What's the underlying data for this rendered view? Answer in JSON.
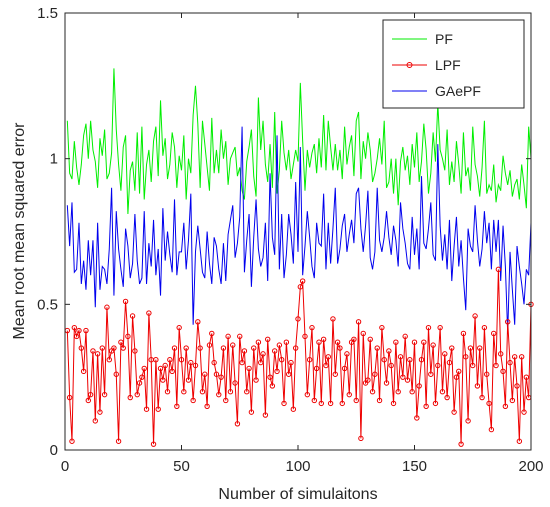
{
  "chart_data": {
    "type": "line",
    "xlabel": "Number of simulaitons",
    "ylabel": "Mean root mean squared error",
    "xlim": [
      0,
      200
    ],
    "ylim": [
      0,
      1.5
    ],
    "xticks": [
      0,
      50,
      100,
      150,
      200
    ],
    "xtick_labels": [
      "0",
      "50",
      "100",
      "150",
      "200"
    ],
    "yticks": [
      0,
      0.5,
      1,
      1.5
    ],
    "ytick_labels": [
      "0",
      "0.5",
      "1",
      "1.5"
    ],
    "grid": false,
    "legend_position": "top-right",
    "series": [
      {
        "name": "PF",
        "color": "#00ee00",
        "marker": "none",
        "values": [
          1.13,
          0.95,
          0.93,
          1.06,
          0.97,
          0.91,
          0.98,
          1.08,
          1.12,
          1.0,
          1.13,
          1.03,
          0.99,
          0.9,
          1.07,
          1.01,
          1.1,
          0.93,
          0.95,
          1.02,
          1.31,
          1.1,
          0.98,
          0.89,
          1.04,
          1.08,
          0.81,
          0.96,
          0.99,
          0.89,
          1.09,
          0.88,
          1.11,
          0.86,
          0.98,
          1.03,
          0.92,
          1.06,
          1.11,
          0.94,
          1.2,
          1.01,
          1.07,
          0.93,
          0.98,
          1.09,
          1.04,
          0.9,
          1.01,
          0.96,
          1.08,
          0.86,
          1.0,
          0.95,
          1.15,
          1.25,
          1.12,
          0.9,
          1.13,
          1.05,
          0.97,
          0.89,
          1.14,
          0.95,
          1.03,
          0.95,
          1.1,
          1.0,
          1.06,
          0.91,
          1.0,
          1.02,
          1.04,
          0.94,
          0.97,
          0.89,
          0.86,
          0.99,
          1.04,
          1.1,
          0.94,
          0.87,
          1.21,
          1.03,
          1.13,
          0.98,
          0.92,
          1.05,
          0.9,
          1.16,
          0.88,
          0.96,
          1.13,
          1.02,
          0.96,
          1.03,
          0.93,
          0.98,
          1.03,
          0.99,
          1.26,
          1.06,
          0.89,
          1.03,
          0.97,
          1.02,
          1.05,
          0.95,
          1.07,
          0.97,
          1.15,
          0.96,
          1.13,
          1.04,
          0.96,
          1.05,
          0.96,
          1.03,
          0.93,
          1.11,
          0.98,
          1.04,
          1.08,
          0.94,
          1.13,
          1.16,
          0.93,
          1.06,
          1.0,
          1.09,
          1.03,
          0.92,
          0.95,
          1.0,
          1.07,
          0.98,
          1.13,
          0.9,
          0.92,
          1.0,
          0.88,
          1.0,
          0.84,
          0.99,
          1.04,
          0.96,
          1.01,
          0.91,
          1.05,
          0.97,
          1.09,
          0.92,
          0.99,
          1.12,
          1.03,
          0.88,
          0.95,
          1.09,
          0.99,
          1.19,
          1.03,
          1.0,
          0.96,
          1.1,
          0.91,
          0.99,
          0.92,
          1.06,
          0.98,
          0.88,
          1.09,
          0.94,
          0.97,
          0.89,
          1.11,
          0.98,
          0.94,
          0.87,
          0.97,
          1.13,
          0.88,
          0.91,
          0.89,
          0.98,
          0.85,
          0.91,
          0.89,
          1.01,
          0.95,
          0.91,
          0.96,
          0.87,
          0.91,
          0.93,
          0.86,
          0.98,
          0.91,
          0.83,
          1.11,
          1.0
        ]
      },
      {
        "name": "LPF",
        "color": "#ee0000",
        "marker": "circle",
        "values": [
          0.41,
          0.18,
          0.03,
          0.42,
          0.39,
          0.41,
          0.35,
          0.27,
          0.41,
          0.17,
          0.19,
          0.34,
          0.1,
          0.33,
          0.13,
          0.35,
          0.19,
          0.49,
          0.31,
          0.34,
          0.35,
          0.26,
          0.03,
          0.37,
          0.35,
          0.51,
          0.39,
          0.18,
          0.46,
          0.34,
          0.19,
          0.23,
          0.25,
          0.28,
          0.14,
          0.47,
          0.31,
          0.02,
          0.31,
          0.14,
          0.28,
          0.24,
          0.29,
          0.2,
          0.31,
          0.27,
          0.35,
          0.15,
          0.42,
          0.31,
          0.2,
          0.35,
          0.24,
          0.3,
          0.17,
          0.29,
          0.44,
          0.35,
          0.2,
          0.26,
          0.15,
          0.36,
          0.4,
          0.3,
          0.26,
          0.19,
          0.25,
          0.35,
          0.17,
          0.39,
          0.2,
          0.36,
          0.23,
          0.09,
          0.39,
          0.3,
          0.34,
          0.2,
          0.28,
          0.13,
          0.35,
          0.24,
          0.37,
          0.3,
          0.33,
          0.12,
          0.38,
          0.25,
          0.22,
          0.34,
          0.27,
          0.36,
          0.31,
          0.16,
          0.37,
          0.26,
          0.3,
          0.14,
          0.35,
          0.45,
          0.56,
          0.58,
          0.39,
          0.19,
          0.31,
          0.42,
          0.17,
          0.28,
          0.37,
          0.16,
          0.38,
          0.29,
          0.32,
          0.16,
          0.45,
          0.26,
          0.37,
          0.35,
          0.16,
          0.28,
          0.33,
          0.19,
          0.37,
          0.38,
          0.17,
          0.44,
          0.04,
          0.4,
          0.23,
          0.24,
          0.38,
          0.2,
          0.26,
          0.35,
          0.17,
          0.42,
          0.31,
          0.23,
          0.34,
          0.29,
          0.16,
          0.37,
          0.2,
          0.32,
          0.25,
          0.39,
          0.24,
          0.31,
          0.2,
          0.37,
          0.11,
          0.22,
          0.31,
          0.37,
          0.15,
          0.42,
          0.26,
          0.36,
          0.16,
          0.29,
          0.42,
          0.2,
          0.33,
          0.18,
          0.3,
          0.35,
          0.13,
          0.25,
          0.27,
          0.02,
          0.4,
          0.32,
          0.1,
          0.35,
          0.29,
          0.46,
          0.22,
          0.35,
          0.18,
          0.42,
          0.26,
          0.16,
          0.07,
          0.4,
          0.29,
          0.62,
          0.33,
          0.27,
          0.15,
          0.44,
          0.3,
          0.17,
          0.32,
          0.22,
          0.03,
          0.32,
          0.13,
          0.25,
          0.18,
          0.5
        ]
      },
      {
        "name": "GAePF",
        "color": "#0000ee",
        "marker": "none",
        "values": [
          0.84,
          0.7,
          0.85,
          0.61,
          0.62,
          0.78,
          0.57,
          0.65,
          0.55,
          0.72,
          0.6,
          0.72,
          0.49,
          0.78,
          0.55,
          0.63,
          0.62,
          0.57,
          0.69,
          0.9,
          0.53,
          0.82,
          0.69,
          0.62,
          0.56,
          0.76,
          0.7,
          0.59,
          0.64,
          0.81,
          0.65,
          0.57,
          0.59,
          0.82,
          0.57,
          0.71,
          0.63,
          0.79,
          0.6,
          0.69,
          0.53,
          0.83,
          0.65,
          0.75,
          0.67,
          0.61,
          0.86,
          0.6,
          0.68,
          0.68,
          0.78,
          0.62,
          0.72,
          0.88,
          0.43,
          0.68,
          0.77,
          0.69,
          0.61,
          0.59,
          0.75,
          0.64,
          0.57,
          0.73,
          0.7,
          0.62,
          0.57,
          0.71,
          0.58,
          0.74,
          0.79,
          0.84,
          0.66,
          0.71,
          0.8,
          1.11,
          0.61,
          0.72,
          0.81,
          0.56,
          0.73,
          0.86,
          0.69,
          0.63,
          0.66,
          0.78,
          0.58,
          0.95,
          0.73,
          0.67,
          1.08,
          0.62,
          0.81,
          0.59,
          0.67,
          0.81,
          0.74,
          0.64,
          0.92,
          0.68,
          1.04,
          0.6,
          0.7,
          0.82,
          0.73,
          0.63,
          0.59,
          0.78,
          0.71,
          0.7,
          0.88,
          0.62,
          0.78,
          0.64,
          0.76,
          0.9,
          0.64,
          0.69,
          0.77,
          0.81,
          0.68,
          0.74,
          0.79,
          0.71,
          0.88,
          0.9,
          0.76,
          0.68,
          0.77,
          0.89,
          0.66,
          0.62,
          0.68,
          0.9,
          0.72,
          0.68,
          0.73,
          0.82,
          0.73,
          0.67,
          0.77,
          0.72,
          0.63,
          0.85,
          0.76,
          0.71,
          0.64,
          0.62,
          0.8,
          0.67,
          0.76,
          0.62,
          0.94,
          0.71,
          0.69,
          0.76,
          0.85,
          0.67,
          0.65,
          1.05,
          0.77,
          0.65,
          0.74,
          0.62,
          0.79,
          0.58,
          0.7,
          0.8,
          0.63,
          0.72,
          0.59,
          0.48,
          0.76,
          0.7,
          0.68,
          0.84,
          0.72,
          0.63,
          0.69,
          0.82,
          0.71,
          0.78,
          0.62,
          0.79,
          0.68,
          0.79,
          0.58,
          0.77,
          0.63,
          0.4,
          0.68,
          0.55,
          0.43,
          0.7,
          0.63,
          0.57,
          0.5,
          0.62,
          0.6,
          0.78
        ]
      }
    ]
  }
}
